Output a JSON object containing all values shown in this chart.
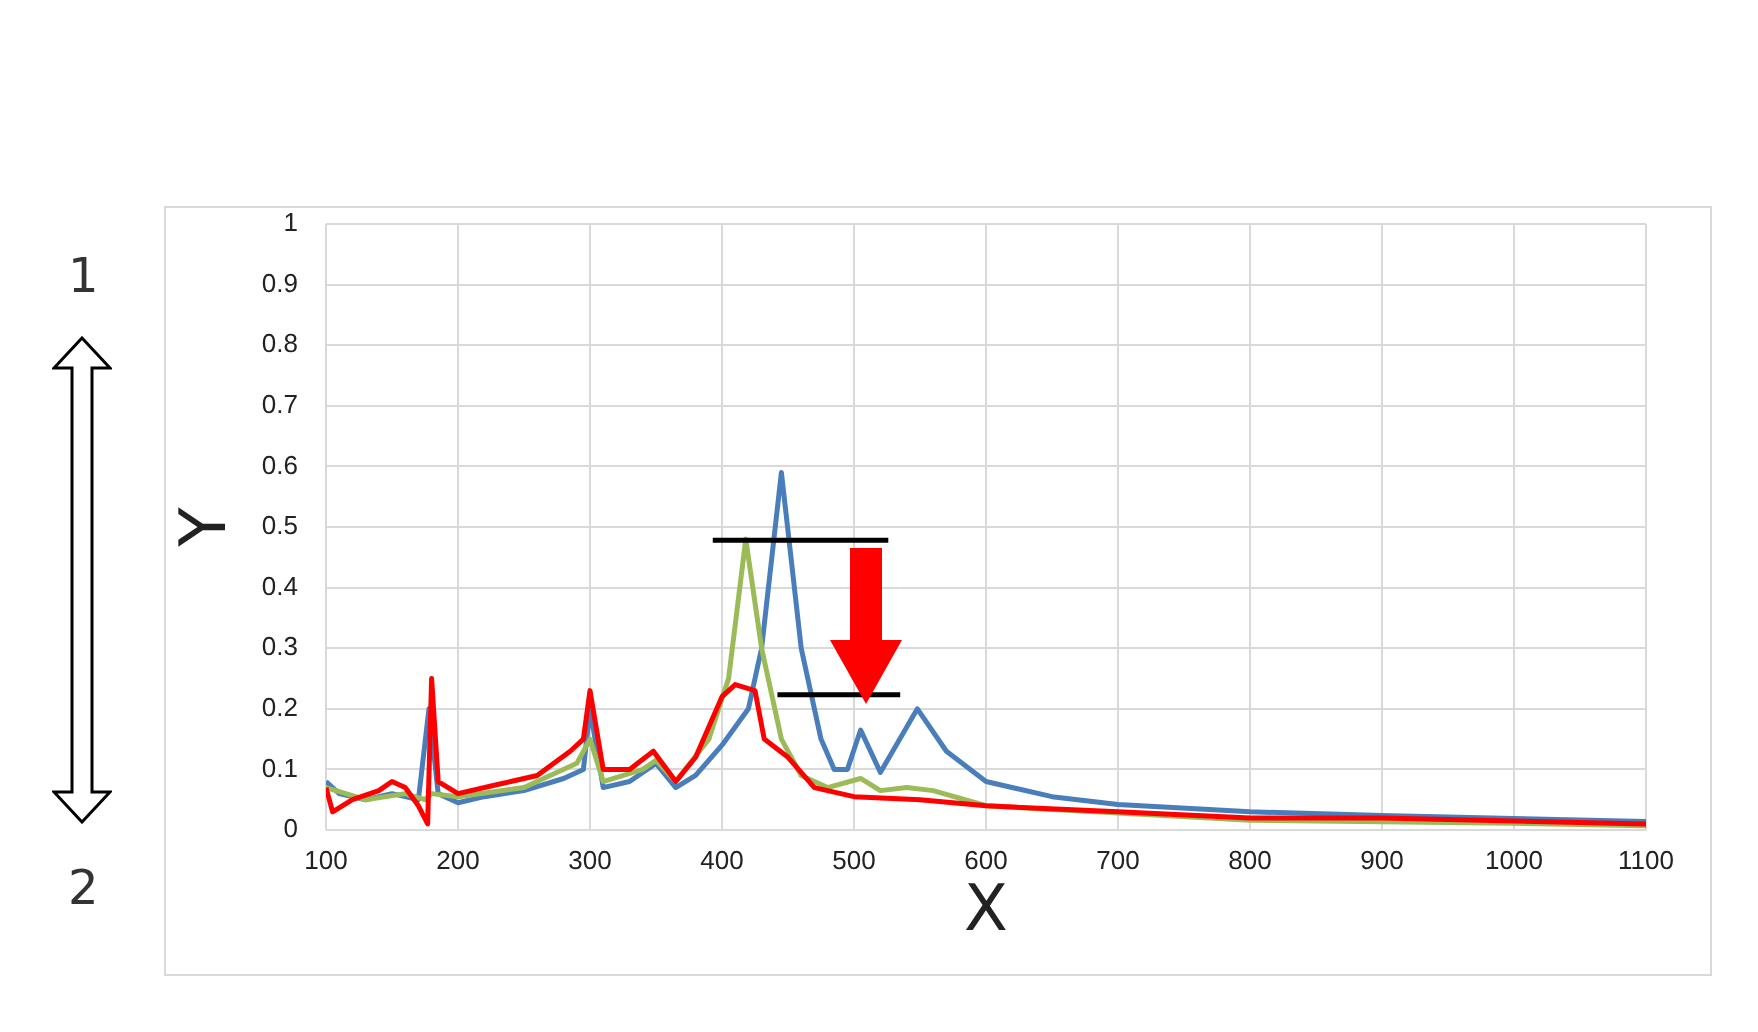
{
  "chart_data": {
    "type": "line",
    "xlabel": "X",
    "ylabel": "Y",
    "xlim": [
      100,
      1100
    ],
    "xticks": [
      100,
      200,
      300,
      400,
      500,
      600,
      700,
      800,
      900,
      1000,
      1100
    ],
    "ylim": [
      0,
      1
    ],
    "yticks": [
      0,
      0.1,
      0.2,
      0.3,
      0.4,
      0.5,
      0.6,
      0.7,
      0.8,
      0.9,
      1
    ],
    "grid": true,
    "legend": false,
    "marker": "none",
    "line_style": "solid",
    "annotations": [
      "1",
      "2"
    ],
    "series": [
      {
        "color": "#4a7ebb",
        "x": [
          100,
          110,
          130,
          150,
          160,
          170,
          178,
          185,
          200,
          220,
          250,
          280,
          295,
          300,
          310,
          330,
          350,
          365,
          380,
          400,
          420,
          430,
          445,
          460,
          475,
          485,
          495,
          505,
          520,
          548,
          570,
          600,
          650,
          700,
          800,
          900,
          1000,
          1100
        ],
        "values": [
          0.08,
          0.06,
          0.05,
          0.06,
          0.055,
          0.05,
          0.2,
          0.06,
          0.045,
          0.055,
          0.065,
          0.085,
          0.1,
          0.2,
          0.07,
          0.08,
          0.11,
          0.07,
          0.09,
          0.14,
          0.2,
          0.3,
          0.59,
          0.3,
          0.15,
          0.1,
          0.1,
          0.165,
          0.095,
          0.2,
          0.13,
          0.08,
          0.055,
          0.042,
          0.03,
          0.024,
          0.019,
          0.014
        ]
      },
      {
        "color": "#9bbb59",
        "x": [
          100,
          130,
          160,
          175,
          180,
          200,
          250,
          290,
          300,
          310,
          340,
          350,
          365,
          390,
          405,
          418,
          430,
          445,
          460,
          480,
          505,
          520,
          540,
          560,
          600,
          700,
          800,
          1000,
          1100
        ],
        "values": [
          0.07,
          0.05,
          0.06,
          0.05,
          0.06,
          0.055,
          0.07,
          0.11,
          0.15,
          0.08,
          0.1,
          0.115,
          0.08,
          0.15,
          0.25,
          0.48,
          0.3,
          0.15,
          0.09,
          0.07,
          0.085,
          0.065,
          0.07,
          0.065,
          0.04,
          0.028,
          0.016,
          0.011,
          0.007
        ]
      },
      {
        "color": "#ff0000",
        "x": [
          100,
          105,
          120,
          140,
          150,
          160,
          170,
          177,
          180,
          185,
          200,
          230,
          260,
          285,
          295,
          300,
          310,
          330,
          348,
          365,
          380,
          400,
          410,
          425,
          432,
          450,
          470,
          500,
          550,
          600,
          700,
          800,
          900,
          1000,
          1100
        ],
        "values": [
          0.07,
          0.03,
          0.05,
          0.065,
          0.08,
          0.07,
          0.04,
          0.01,
          0.25,
          0.08,
          0.06,
          0.075,
          0.09,
          0.13,
          0.15,
          0.23,
          0.1,
          0.1,
          0.13,
          0.08,
          0.12,
          0.22,
          0.24,
          0.23,
          0.15,
          0.12,
          0.07,
          0.055,
          0.05,
          0.04,
          0.03,
          0.02,
          0.02,
          0.015,
          0.01
        ]
      },
      {
        "color": "#000000",
        "x": [
          393,
          526
        ],
        "values": [
          0.478,
          0.478
        ]
      },
      {
        "color": "#000000",
        "x": [
          442,
          535
        ],
        "values": [
          0.223,
          0.223
        ]
      }
    ]
  }
}
